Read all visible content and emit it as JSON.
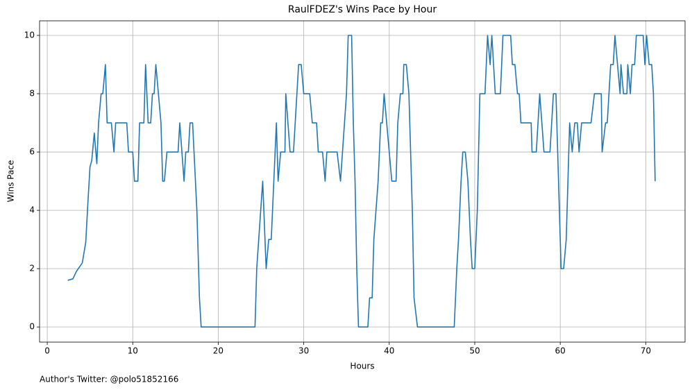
{
  "chart_data": {
    "type": "line",
    "title": "RaulFDEZ's Wins Pace by Hour",
    "x_label": "Hours",
    "y_label": "Wins Pace",
    "annotation": "Author's Twitter: @polo51852166",
    "x": [
      2.4,
      3.0,
      3.4,
      4.1,
      4.5,
      4.8,
      5.0,
      5.2,
      5.5,
      5.8,
      6.0,
      6.3,
      6.5,
      6.8,
      7.0,
      7.5,
      7.8,
      8.0,
      9.3,
      9.5,
      10.0,
      10.2,
      10.6,
      10.8,
      11.3,
      11.5,
      11.8,
      12.1,
      12.3,
      12.5,
      12.7,
      13.3,
      13.5,
      13.7,
      14.0,
      15.3,
      15.5,
      16.0,
      16.2,
      16.5,
      16.7,
      17.0,
      17.5,
      17.8,
      18.0,
      24.3,
      24.5,
      25.2,
      25.6,
      25.9,
      26.2,
      26.8,
      27.0,
      27.3,
      27.8,
      27.9,
      28.4,
      28.8,
      29.4,
      29.7,
      30.0,
      30.7,
      31.0,
      31.5,
      31.7,
      32.2,
      32.5,
      32.7,
      33.9,
      34.3,
      35.0,
      35.2,
      35.6,
      35.8,
      36.0,
      36.2,
      36.4,
      37.5,
      37.7,
      38.0,
      38.2,
      38.7,
      39.0,
      39.2,
      39.4,
      40.3,
      40.8,
      41.0,
      41.3,
      41.6,
      41.7,
      42.0,
      42.3,
      42.7,
      42.9,
      43.3,
      47.6,
      47.9,
      48.1,
      48.4,
      48.6,
      48.9,
      49.2,
      49.5,
      49.7,
      50.0,
      50.3,
      50.6,
      51.2,
      51.5,
      51.8,
      52.0,
      52.4,
      53.0,
      53.3,
      54.2,
      54.4,
      54.7,
      55.0,
      55.2,
      55.4,
      56.6,
      56.7,
      57.2,
      57.6,
      58.1,
      58.8,
      59.2,
      59.5,
      60.1,
      60.4,
      60.7,
      61.1,
      61.4,
      61.7,
      62.0,
      62.2,
      62.5,
      63.6,
      64.0,
      64.8,
      64.9,
      65.3,
      65.5,
      65.9,
      66.2,
      66.4,
      67.0,
      67.1,
      67.4,
      67.8,
      67.9,
      68.2,
      68.4,
      68.7,
      68.9,
      69.7,
      69.9,
      70.1,
      70.4,
      70.7,
      70.9,
      71.1
    ],
    "series": [
      {
        "name": "Wins Pace",
        "color": "#1f77b4",
        "values": [
          1.6,
          1.65,
          1.9,
          2.2,
          2.9,
          4.5,
          5.5,
          5.7,
          6.65,
          5.6,
          7,
          8,
          8,
          9,
          7,
          7,
          6,
          7,
          7,
          6,
          6,
          5,
          5,
          7,
          7,
          9,
          7,
          7,
          8,
          8,
          9,
          7,
          5,
          5,
          6,
          6,
          7,
          5,
          6,
          6,
          7,
          7,
          4,
          1,
          0,
          0,
          2,
          5,
          2,
          3,
          3,
          7,
          5,
          6,
          6,
          8,
          6,
          6,
          9,
          9,
          8,
          8,
          7,
          7,
          6,
          6,
          5,
          6,
          6,
          5,
          8,
          10,
          10,
          7,
          5,
          2,
          0,
          0,
          1,
          1,
          3,
          5,
          7,
          7,
          8,
          5,
          5,
          7,
          8,
          8,
          9,
          9,
          8,
          4,
          1,
          0,
          0,
          2,
          3,
          5,
          6,
          6,
          5,
          3,
          2,
          2,
          4,
          8,
          8,
          10,
          9,
          10,
          8,
          8,
          10,
          10,
          9,
          9,
          8,
          8,
          7,
          7,
          6,
          6,
          8,
          6,
          6,
          8,
          8,
          2,
          2,
          3,
          7,
          6,
          7,
          7,
          6,
          7,
          7,
          8,
          8,
          6,
          7,
          7,
          9,
          9,
          10,
          8,
          9,
          8,
          8,
          9,
          8,
          9,
          9,
          10,
          10,
          9,
          10,
          9,
          9,
          8,
          5
        ]
      }
    ],
    "xlim": [
      -0.9,
      74.6
    ],
    "ylim": [
      -0.52,
      10.5
    ],
    "xticks": [
      0,
      10,
      20,
      30,
      40,
      50,
      60,
      70
    ],
    "yticks": [
      0,
      2,
      4,
      6,
      8,
      10
    ],
    "grid": true
  }
}
